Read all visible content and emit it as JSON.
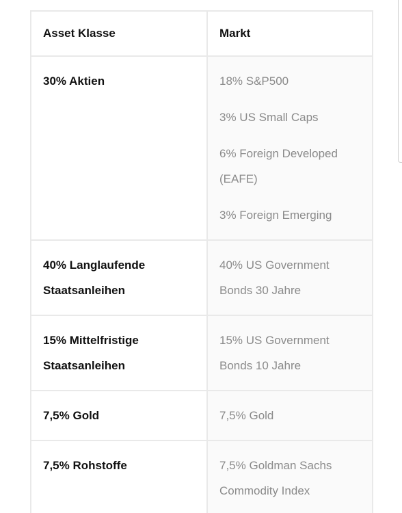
{
  "table": {
    "headers": [
      "Asset Klasse",
      "Markt"
    ],
    "rows": [
      {
        "asset": "30% Aktien",
        "markets": [
          "18% S&P500",
          "3% US Small Caps",
          "6% Foreign Developed (EAFE)",
          "3% Foreign Emerging"
        ]
      },
      {
        "asset": "40% Langlaufende Staatsanleihen",
        "markets": [
          "40% US Government Bonds 30 Jahre"
        ]
      },
      {
        "asset": "15% Mittelfristige Staatsanleihen",
        "markets": [
          "15% US Government Bonds 10 Jahre"
        ]
      },
      {
        "asset": "7,5% Gold",
        "markets": [
          "7,5% Gold"
        ]
      },
      {
        "asset": "7,5% Rohstoffe",
        "markets": [
          "7,5% Goldman Sachs Commodity Index"
        ]
      }
    ]
  }
}
